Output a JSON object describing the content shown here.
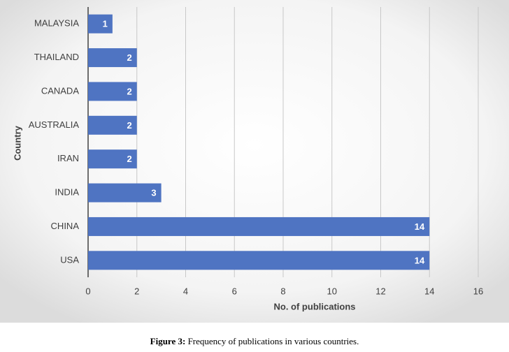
{
  "chart_data": {
    "type": "bar",
    "orientation": "horizontal",
    "categories": [
      "MALAYSIA",
      "THAILAND",
      "CANADA",
      "AUSTRALIA",
      "IRAN",
      "INDIA",
      "CHINA",
      "USA"
    ],
    "values": [
      1,
      2,
      2,
      2,
      2,
      3,
      14,
      14
    ],
    "color": "#4f74c2",
    "xlim": [
      0,
      16
    ],
    "xticks": [
      0,
      2,
      4,
      6,
      8,
      10,
      12,
      14,
      16
    ],
    "xlabel": "No. of publications",
    "ylabel": "Country",
    "grid": true
  },
  "caption": {
    "label": "Figure 3:",
    "text": "Frequency of publications in various countries."
  }
}
